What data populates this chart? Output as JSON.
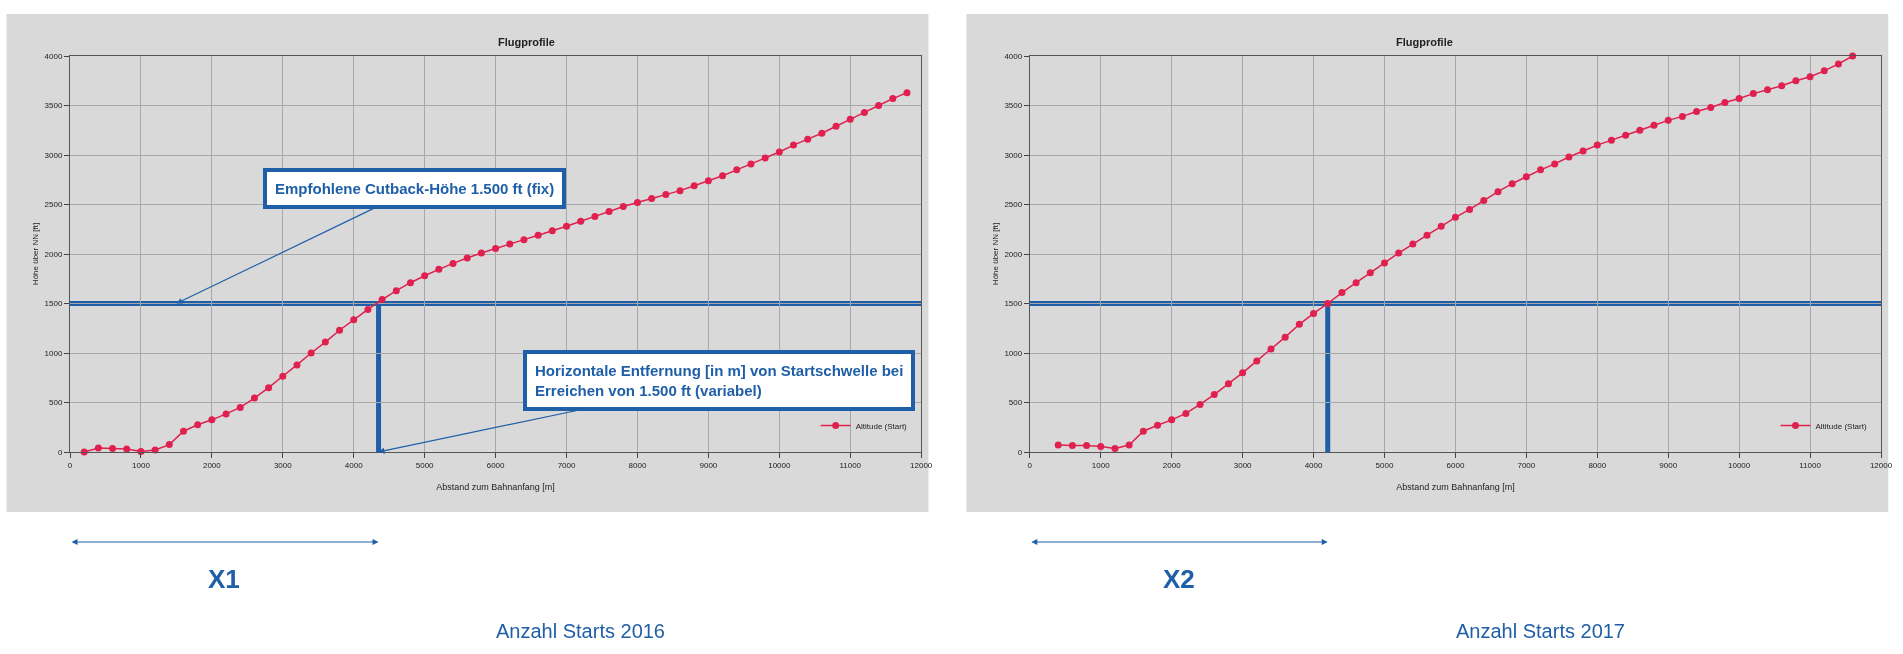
{
  "chart_data": [
    {
      "type": "line",
      "title": "Flugprofile",
      "xlabel": "Abstand zum Bahnanfang [m]",
      "ylabel": "Höhe über NN [ft]",
      "x": [
        200,
        400,
        600,
        800,
        1000,
        1200,
        1400,
        1600,
        1800,
        2000,
        2200,
        2400,
        2600,
        2800,
        3000,
        3200,
        3400,
        3600,
        3800,
        4000,
        4200,
        4400,
        4600,
        4800,
        5000,
        5200,
        5400,
        5600,
        5800,
        6000,
        6200,
        6400,
        6600,
        6800,
        7000,
        7200,
        7400,
        7600,
        7800,
        8000,
        8200,
        8400,
        8600,
        8800,
        9000,
        9200,
        9400,
        9600,
        9800,
        10000,
        10200,
        10400,
        10600,
        10800,
        11000,
        11200,
        11400,
        11600,
        11800
      ],
      "series": [
        {
          "name": "Altitude (Start)",
          "color": "#e0204e",
          "values": [
            0,
            40,
            35,
            30,
            5,
            20,
            75,
            210,
            275,
            325,
            385,
            450,
            545,
            650,
            765,
            880,
            1000,
            1110,
            1230,
            1335,
            1440,
            1540,
            1630,
            1710,
            1780,
            1845,
            1905,
            1960,
            2010,
            2055,
            2100,
            2145,
            2190,
            2235,
            2280,
            2330,
            2380,
            2430,
            2480,
            2520,
            2560,
            2600,
            2640,
            2690,
            2740,
            2790,
            2850,
            2910,
            2970,
            3030,
            3100,
            3160,
            3220,
            3290,
            3360,
            3430,
            3500,
            3570,
            3630
          ]
        }
      ],
      "xlim": [
        0,
        12000
      ],
      "xticks": [
        0,
        1000,
        2000,
        3000,
        4000,
        5000,
        6000,
        7000,
        8000,
        9000,
        10000,
        11000,
        12000
      ],
      "ylim": [
        0,
        4000
      ],
      "yticks": [
        0,
        500,
        1000,
        1500,
        2000,
        2500,
        3000,
        3500,
        4000
      ],
      "grid": true,
      "legend": "bottom right",
      "marker": "circle",
      "ref_lines": [
        {
          "axis": "y",
          "value": 1500,
          "color": "#1f5fa8"
        },
        {
          "axis": "x",
          "value": 4350,
          "color": "#1f5fa8"
        }
      ],
      "annotations": [
        {
          "text": "Empfohlene Cutback-Höhe 1.500 ft (fix)",
          "x": 1500,
          "y": 1500
        },
        {
          "text": "Horizontale Entfernung [in m] von Startschwelle bei\nErreichen von 1.500 ft (variabel)",
          "x": 4350,
          "y": 0
        },
        "X1",
        "Anzahl Starts 2016"
      ]
    },
    {
      "type": "line",
      "title": "Flugprofile",
      "xlabel": "Abstand zum Bahnanfang [m]",
      "ylabel": "Höhe über NN [ft]",
      "x": [
        400,
        600,
        800,
        1000,
        1200,
        1400,
        1600,
        1800,
        2000,
        2200,
        2400,
        2600,
        2800,
        3000,
        3200,
        3400,
        3600,
        3800,
        4000,
        4200,
        4400,
        4600,
        4800,
        5000,
        5200,
        5400,
        5600,
        5800,
        6000,
        6200,
        6400,
        6600,
        6800,
        7000,
        7200,
        7400,
        7600,
        7800,
        8000,
        8200,
        8400,
        8600,
        8800,
        9000,
        9200,
        9400,
        9600,
        9800,
        10000,
        10200,
        10400,
        10600,
        10800,
        11000,
        11200,
        11400,
        11600
      ],
      "series": [
        {
          "name": "Altitude (Start)",
          "color": "#e0204e",
          "values": [
            70,
            65,
            65,
            55,
            35,
            70,
            210,
            270,
            325,
            390,
            480,
            580,
            690,
            800,
            920,
            1040,
            1160,
            1290,
            1400,
            1500,
            1610,
            1710,
            1810,
            1910,
            2010,
            2100,
            2190,
            2280,
            2370,
            2450,
            2540,
            2630,
            2710,
            2780,
            2850,
            2910,
            2980,
            3040,
            3100,
            3150,
            3200,
            3250,
            3300,
            3350,
            3390,
            3440,
            3480,
            3530,
            3570,
            3620,
            3660,
            3700,
            3750,
            3790,
            3850,
            3920,
            4000
          ]
        }
      ],
      "xlim": [
        0,
        12000
      ],
      "xticks": [
        0,
        1000,
        2000,
        3000,
        4000,
        5000,
        6000,
        7000,
        8000,
        9000,
        10000,
        11000,
        12000
      ],
      "ylim": [
        0,
        4000
      ],
      "yticks": [
        0,
        500,
        1000,
        1500,
        2000,
        2500,
        3000,
        3500,
        4000
      ],
      "grid": true,
      "legend": "bottom right",
      "marker": "circle",
      "ref_lines": [
        {
          "axis": "y",
          "value": 1500,
          "color": "#1f5fa8"
        },
        {
          "axis": "x",
          "value": 4200,
          "color": "#1f5fa8"
        }
      ],
      "annotations": [
        "X2",
        "Anzahl Starts 2017"
      ]
    }
  ]
}
